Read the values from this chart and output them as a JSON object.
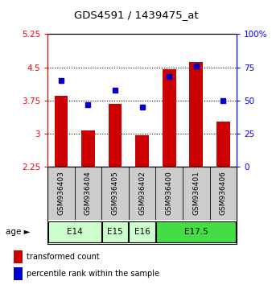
{
  "title": "GDS4591 / 1439475_at",
  "samples": [
    "GSM936403",
    "GSM936404",
    "GSM936405",
    "GSM936402",
    "GSM936400",
    "GSM936401",
    "GSM936406"
  ],
  "transformed_count": [
    3.85,
    3.07,
    3.68,
    2.97,
    4.45,
    4.62,
    3.28
  ],
  "percentile_rank": [
    65,
    47,
    58,
    45,
    68,
    76,
    50
  ],
  "ylim_left": [
    2.25,
    5.25
  ],
  "ylim_right": [
    0,
    100
  ],
  "yticks_left": [
    2.25,
    3.0,
    3.75,
    4.5,
    5.25
  ],
  "yticks_right": [
    0,
    25,
    50,
    75,
    100
  ],
  "ytick_labels_left": [
    "2.25",
    "3",
    "3.75",
    "4.5",
    "5.25"
  ],
  "ytick_labels_right": [
    "0",
    "25",
    "50",
    "75",
    "100%"
  ],
  "age_groups": [
    {
      "label": "E14",
      "samples": [
        "GSM936403",
        "GSM936404"
      ],
      "color": "#ccffcc"
    },
    {
      "label": "E15",
      "samples": [
        "GSM936405"
      ],
      "color": "#ccffcc"
    },
    {
      "label": "E16",
      "samples": [
        "GSM936402"
      ],
      "color": "#ccffcc"
    },
    {
      "label": "E17.5",
      "samples": [
        "GSM936400",
        "GSM936401",
        "GSM936406"
      ],
      "color": "#44dd44"
    }
  ],
  "bar_color": "#cc0000",
  "dot_color": "#0000cc",
  "bar_bottom": 2.25,
  "bg_color": "#ffffff",
  "sample_bg": "#cccccc",
  "legend_labels": [
    "transformed count",
    "percentile rank within the sample"
  ],
  "grid_yticks": [
    3.0,
    3.75,
    4.5
  ]
}
